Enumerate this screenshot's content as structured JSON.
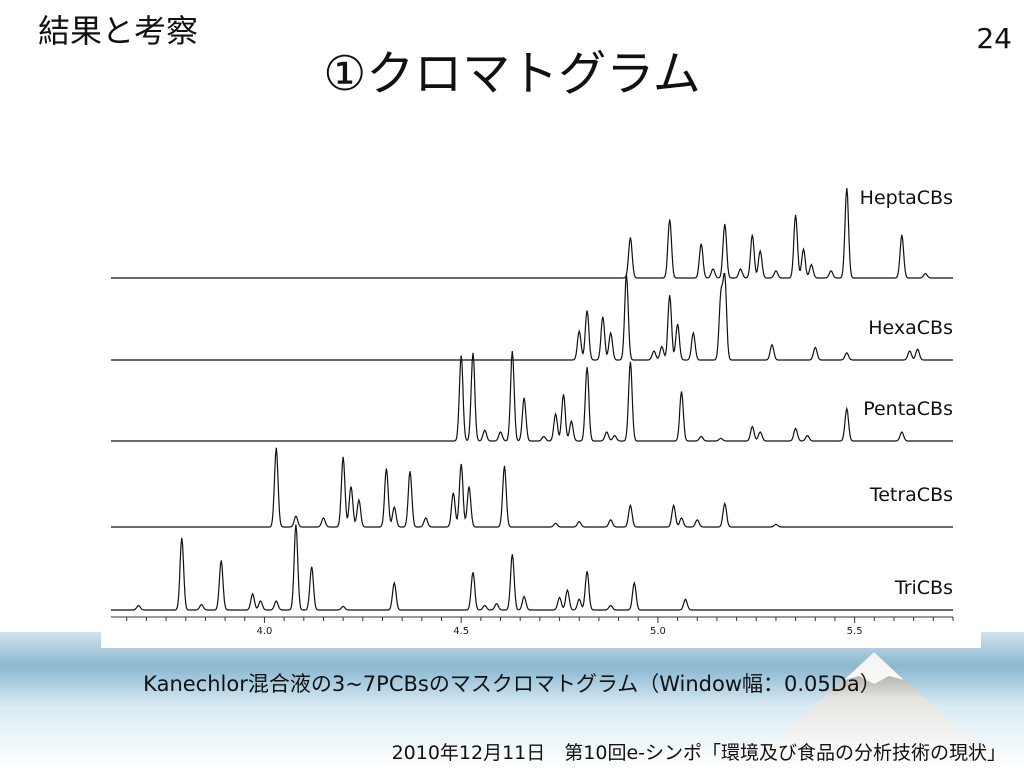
{
  "header": {
    "section_title": "結果と考察",
    "title": "①クロマトグラム",
    "page_number": "24"
  },
  "caption": "Kanechlor混合液の3~7PCBsのマスクロマトグラム（Window幅：0.05Da）",
  "footer": "2010年12月11日　第10回e-シンポ「環境及び食品の分析技術の現状」",
  "colors": {
    "trace": "#111111",
    "band": "#8ab7d0"
  },
  "chart_data": {
    "type": "line",
    "title": "",
    "xlabel": "",
    "ylabel": "",
    "xlim": [
      3.61,
      5.75
    ],
    "x_ticks": [
      4.0,
      4.5,
      5.0,
      5.5
    ],
    "x_tick_labels": [
      "4.0",
      "4.5",
      "5.0",
      "5.5"
    ],
    "grid": false,
    "legend": "labels at right end of each trace",
    "series": [
      {
        "name": "TriCBs",
        "peaks": [
          [
            3.68,
            0.05
          ],
          [
            3.79,
            0.8
          ],
          [
            3.84,
            0.06
          ],
          [
            3.89,
            0.55
          ],
          [
            3.97,
            0.18
          ],
          [
            3.99,
            0.1
          ],
          [
            4.03,
            0.1
          ],
          [
            4.08,
            0.95
          ],
          [
            4.12,
            0.48
          ],
          [
            4.2,
            0.04
          ],
          [
            4.33,
            0.3
          ],
          [
            4.53,
            0.42
          ],
          [
            4.56,
            0.05
          ],
          [
            4.59,
            0.07
          ],
          [
            4.63,
            0.62
          ],
          [
            4.66,
            0.15
          ],
          [
            4.75,
            0.14
          ],
          [
            4.77,
            0.22
          ],
          [
            4.8,
            0.12
          ],
          [
            4.82,
            0.43
          ],
          [
            4.88,
            0.05
          ],
          [
            4.94,
            0.3
          ],
          [
            5.07,
            0.12
          ]
        ]
      },
      {
        "name": "TetraCBs",
        "peaks": [
          [
            4.03,
            0.88
          ],
          [
            4.08,
            0.12
          ],
          [
            4.15,
            0.1
          ],
          [
            4.2,
            0.78
          ],
          [
            4.22,
            0.45
          ],
          [
            4.24,
            0.3
          ],
          [
            4.31,
            0.65
          ],
          [
            4.33,
            0.22
          ],
          [
            4.37,
            0.62
          ],
          [
            4.41,
            0.1
          ],
          [
            4.48,
            0.38
          ],
          [
            4.5,
            0.7
          ],
          [
            4.52,
            0.45
          ],
          [
            4.61,
            0.68
          ],
          [
            4.74,
            0.04
          ],
          [
            4.8,
            0.06
          ],
          [
            4.88,
            0.08
          ],
          [
            4.93,
            0.24
          ],
          [
            5.04,
            0.24
          ],
          [
            5.06,
            0.1
          ],
          [
            5.1,
            0.08
          ],
          [
            5.17,
            0.26
          ],
          [
            5.3,
            0.03
          ]
        ]
      },
      {
        "name": "PentaCBs",
        "peaks": [
          [
            4.5,
            0.95
          ],
          [
            4.53,
            0.98
          ],
          [
            4.56,
            0.12
          ],
          [
            4.6,
            0.1
          ],
          [
            4.63,
            1.0
          ],
          [
            4.66,
            0.48
          ],
          [
            4.71,
            0.05
          ],
          [
            4.74,
            0.3
          ],
          [
            4.76,
            0.52
          ],
          [
            4.78,
            0.22
          ],
          [
            4.82,
            0.82
          ],
          [
            4.87,
            0.1
          ],
          [
            4.89,
            0.06
          ],
          [
            4.93,
            0.88
          ],
          [
            5.06,
            0.55
          ],
          [
            5.11,
            0.05
          ],
          [
            5.16,
            0.03
          ],
          [
            5.24,
            0.16
          ],
          [
            5.26,
            0.1
          ],
          [
            5.35,
            0.14
          ],
          [
            5.38,
            0.06
          ],
          [
            5.48,
            0.36
          ],
          [
            5.62,
            0.1
          ]
        ]
      },
      {
        "name": "HexaCBs",
        "peaks": [
          [
            4.8,
            0.32
          ],
          [
            4.82,
            0.55
          ],
          [
            4.86,
            0.48
          ],
          [
            4.88,
            0.3
          ],
          [
            4.92,
            0.95
          ],
          [
            4.99,
            0.1
          ],
          [
            5.01,
            0.15
          ],
          [
            5.03,
            0.72
          ],
          [
            5.05,
            0.4
          ],
          [
            5.09,
            0.3
          ],
          [
            5.16,
            0.7
          ],
          [
            5.17,
            0.9
          ],
          [
            5.29,
            0.17
          ],
          [
            5.4,
            0.14
          ],
          [
            5.48,
            0.08
          ],
          [
            5.64,
            0.1
          ],
          [
            5.66,
            0.12
          ]
        ]
      },
      {
        "name": "HeptaCBs",
        "peaks": [
          [
            4.93,
            0.45
          ],
          [
            5.03,
            0.65
          ],
          [
            5.11,
            0.38
          ],
          [
            5.14,
            0.1
          ],
          [
            5.17,
            0.6
          ],
          [
            5.21,
            0.1
          ],
          [
            5.24,
            0.48
          ],
          [
            5.26,
            0.3
          ],
          [
            5.3,
            0.08
          ],
          [
            5.35,
            0.7
          ],
          [
            5.37,
            0.32
          ],
          [
            5.39,
            0.15
          ],
          [
            5.44,
            0.08
          ],
          [
            5.48,
            1.0
          ],
          [
            5.62,
            0.48
          ],
          [
            5.68,
            0.05
          ]
        ]
      }
    ]
  }
}
